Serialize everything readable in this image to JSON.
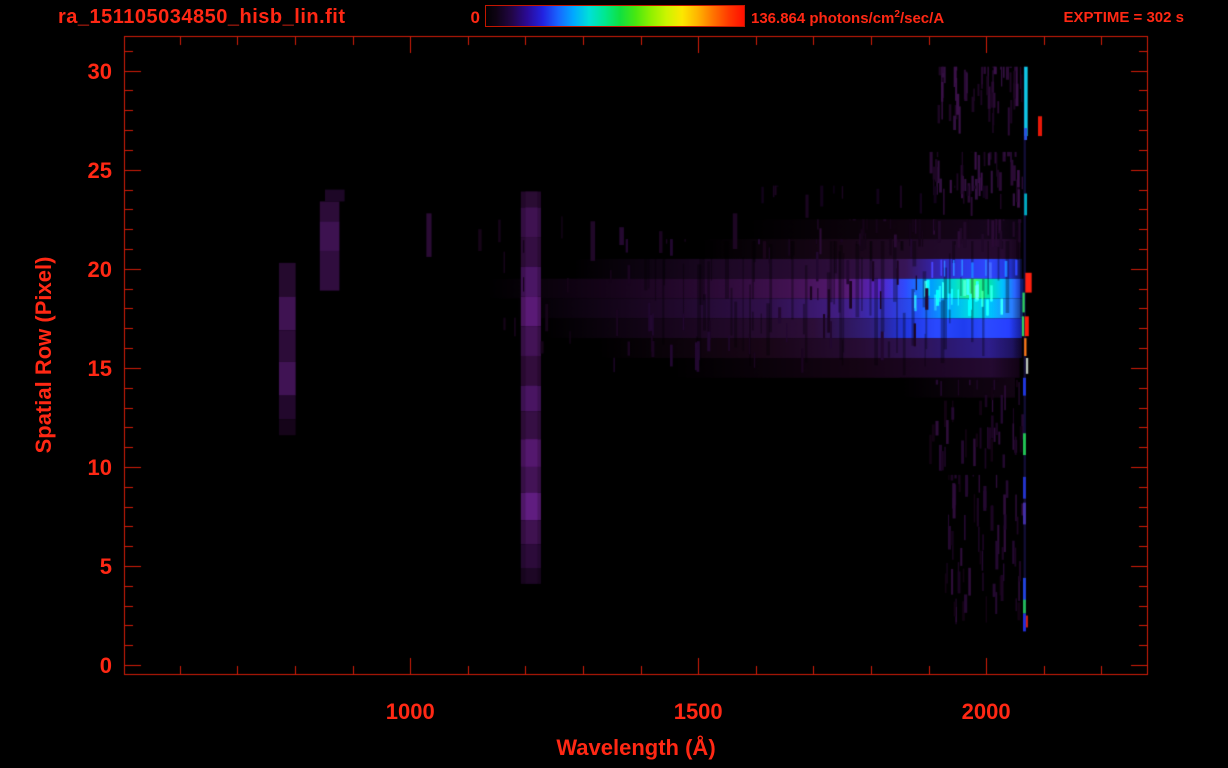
{
  "header": {
    "title": "ra_151105034850_hisb_lin.fit",
    "exptime": "EXPTIME = 302 s",
    "colorbar": {
      "min_label": "0",
      "max_label_prefix": "136.864 photons/cm",
      "max_label_sup": "2",
      "max_label_suffix": "/sec/A",
      "gradient": [
        [
          0.0,
          "#020202"
        ],
        [
          0.04,
          "#0e0314"
        ],
        [
          0.1,
          "#220646"
        ],
        [
          0.16,
          "#2a0a96"
        ],
        [
          0.22,
          "#2222e0"
        ],
        [
          0.28,
          "#1866ff"
        ],
        [
          0.34,
          "#00aaff"
        ],
        [
          0.4,
          "#00e0d8"
        ],
        [
          0.46,
          "#00e890"
        ],
        [
          0.52,
          "#10e040"
        ],
        [
          0.58,
          "#48e810"
        ],
        [
          0.64,
          "#90f000"
        ],
        [
          0.7,
          "#ccf400"
        ],
        [
          0.76,
          "#fce800"
        ],
        [
          0.82,
          "#ffb400"
        ],
        [
          0.88,
          "#ff7400"
        ],
        [
          0.94,
          "#ff3a00"
        ],
        [
          1.0,
          "#ff0e00"
        ]
      ]
    }
  },
  "axes": {
    "x": {
      "title": "Wavelength (Å)",
      "range": [
        503,
        2281
      ],
      "major_ticks": [
        1000,
        1500,
        2000
      ],
      "labels": [
        "1000",
        "1500",
        "2000"
      ],
      "minor_step": 100,
      "minor_from": 600,
      "minor_to": 2200
    },
    "y": {
      "title": "Spatial Row (Pixel)",
      "range": [
        -0.5,
        31.75
      ],
      "major_ticks": [
        0,
        5,
        10,
        15,
        20,
        25,
        30
      ],
      "labels": [
        "0",
        "5",
        "10",
        "15",
        "20",
        "25",
        "30"
      ],
      "minor_step": 1,
      "minor_from": 0,
      "minor_to": 31
    }
  },
  "colors": {
    "axis": "#d41c08",
    "text": "#ff2814",
    "background": "#000000"
  },
  "chart_data": {
    "type": "heatmap",
    "title": "ra_151105034850_hisb_lin.fit",
    "xlabel": "Wavelength (Å)",
    "ylabel": "Spatial Row (Pixel)",
    "x_range_angstrom": [
      503,
      2281
    ],
    "y_range_rows": [
      -0.5,
      31.75
    ],
    "intensity_scale": {
      "min": 0,
      "max": 136.864,
      "units": "photons/cm2/sec/A"
    },
    "exposure_s": 302,
    "background": "#000000",
    "features": {
      "seed": 42,
      "h_bands": [
        {
          "row": 22,
          "stops": [
            [
              1580,
              "#000000"
            ],
            [
              1850,
              "#10030f"
            ],
            [
              2000,
              "#16051c"
            ],
            [
              2058,
              "#0c0310"
            ]
          ]
        },
        {
          "row": 21,
          "stops": [
            [
              1500,
              "#000000"
            ],
            [
              1750,
              "#180617"
            ],
            [
              1920,
              "#220a2a"
            ],
            [
              2030,
              "#260b30"
            ],
            [
              2060,
              "#150418"
            ]
          ]
        },
        {
          "row": 20,
          "stops": [
            [
              1280,
              "#000000"
            ],
            [
              1560,
              "#1e0826"
            ],
            [
              1760,
              "#2e0e3c"
            ],
            [
              1860,
              "#381658"
            ],
            [
              1915,
              "#3325b0"
            ],
            [
              1960,
              "#2c3ae8"
            ],
            [
              2005,
              "#2e47ff"
            ],
            [
              2040,
              "#2434d8"
            ],
            [
              2062,
              "#10124a"
            ]
          ]
        },
        {
          "row": 19,
          "stops": [
            [
              1130,
              "#000000"
            ],
            [
              1350,
              "#16041a"
            ],
            [
              1520,
              "#2a0a34"
            ],
            [
              1660,
              "#421252"
            ],
            [
              1760,
              "#561a74"
            ],
            [
              1815,
              "#5524c8"
            ],
            [
              1860,
              "#2f4cff"
            ],
            [
              1905,
              "#00a0ff"
            ],
            [
              1945,
              "#00ddd0"
            ],
            [
              1980,
              "#35ff78"
            ],
            [
              2003,
              "#00e8a8"
            ],
            [
              2028,
              "#00c2ff"
            ],
            [
              2050,
              "#2a64ff"
            ],
            [
              2065,
              "#101e90"
            ]
          ]
        },
        {
          "row": 18,
          "stops": [
            [
              1180,
              "#000000"
            ],
            [
              1420,
              "#1c0724"
            ],
            [
              1620,
              "#30104a"
            ],
            [
              1760,
              "#431f8a"
            ],
            [
              1830,
              "#3434d0"
            ],
            [
              1885,
              "#2256ff"
            ],
            [
              1935,
              "#00aaff"
            ],
            [
              1975,
              "#00dce0"
            ],
            [
              2010,
              "#00bfff"
            ],
            [
              2045,
              "#2a7dff"
            ],
            [
              2064,
              "#123078"
            ]
          ]
        },
        {
          "row": 17,
          "stops": [
            [
              1230,
              "#000000"
            ],
            [
              1500,
              "#1c0722"
            ],
            [
              1700,
              "#2c0e38"
            ],
            [
              1800,
              "#311e7a"
            ],
            [
              1860,
              "#2136e0"
            ],
            [
              1915,
              "#2a49ff"
            ],
            [
              1960,
              "#1f3df0"
            ],
            [
              2000,
              "#2c4bff"
            ],
            [
              2040,
              "#2740ff"
            ],
            [
              2062,
              "#141f96"
            ]
          ]
        },
        {
          "row": 16,
          "stops": [
            [
              1320,
              "#000000"
            ],
            [
              1620,
              "#190617"
            ],
            [
              1780,
              "#270c34"
            ],
            [
              1880,
              "#2f1457"
            ],
            [
              1950,
              "#2c1a78"
            ],
            [
              2005,
              "#2e1e8c"
            ],
            [
              2045,
              "#1f1462"
            ],
            [
              2062,
              "#0e0526"
            ]
          ]
        },
        {
          "row": 15,
          "stops": [
            [
              1450,
              "#000000"
            ],
            [
              1780,
              "#150414"
            ],
            [
              1930,
              "#1f0728"
            ],
            [
              2010,
              "#240a31"
            ],
            [
              2058,
              "#120314"
            ]
          ]
        },
        {
          "row": 14,
          "stops": [
            [
              1850,
              "#000000"
            ],
            [
              1980,
              "#0e030f"
            ],
            [
              2050,
              "#120413"
            ]
          ]
        }
      ],
      "lyman_alpha_column": {
        "x": [
          1192,
          1227
        ],
        "core_x": [
          1200,
          1221
        ],
        "segments": [
          [
            23.1,
            23.9,
            "#220829",
            "#2a0c33"
          ],
          [
            21.6,
            23.1,
            "#330e41",
            "#3f1251"
          ],
          [
            20.1,
            21.6,
            "#2a0b34",
            "#340e42"
          ],
          [
            18.6,
            20.1,
            "#3c1150",
            "#4a1664"
          ],
          [
            17.1,
            18.6,
            "#4a155e",
            "#5a1a76"
          ],
          [
            15.6,
            17.1,
            "#360f44",
            "#431356"
          ],
          [
            14.1,
            15.6,
            "#28092f",
            "#320d3c"
          ],
          [
            12.8,
            14.1,
            "#3c1150",
            "#491562"
          ],
          [
            11.4,
            12.8,
            "#2c0c36",
            "#360f44"
          ],
          [
            10.0,
            11.4,
            "#451358",
            "#54186e"
          ],
          [
            8.7,
            10.0,
            "#360f44",
            "#431356"
          ],
          [
            7.3,
            8.7,
            "#4e1766",
            "#601d80"
          ],
          [
            6.1,
            7.3,
            "#330e40",
            "#3f1250"
          ],
          [
            4.9,
            6.1,
            "#240930",
            "#2c0b3a"
          ],
          [
            4.1,
            4.9,
            "#17051d",
            "#1d0725"
          ]
        ]
      },
      "left_blob_columns": [
        {
          "x": [
            772,
            801
          ],
          "segments": [
            [
              18.6,
              20.3,
              "#250a2e"
            ],
            [
              16.9,
              18.6,
              "#3f1352"
            ],
            [
              15.3,
              16.9,
              "#2c0c38"
            ],
            [
              13.6,
              15.3,
              "#401354"
            ],
            [
              12.4,
              13.6,
              "#22082c"
            ],
            [
              11.6,
              12.4,
              "#150419"
            ]
          ]
        },
        {
          "x": [
            843,
            877
          ],
          "segments": [
            [
              22.4,
              23.4,
              "#2c0c38"
            ],
            [
              20.9,
              22.4,
              "#3d1250"
            ],
            [
              18.9,
              20.9,
              "#300d3e"
            ]
          ]
        },
        {
          "x": [
            852,
            886
          ],
          "segments": [
            [
              23.4,
              24.0,
              "#1d0726"
            ]
          ]
        }
      ],
      "faint_lines": [
        [
          1028,
          1037,
          20.6,
          22.8,
          "#2a0b34"
        ],
        [
          1118,
          1124,
          20.9,
          22.0,
          "#160418"
        ],
        [
          1313,
          1321,
          20.4,
          22.4,
          "#200828"
        ],
        [
          1363,
          1371,
          21.2,
          22.1,
          "#240930"
        ],
        [
          1432,
          1438,
          20.8,
          21.9,
          "#1a0520"
        ],
        [
          1560,
          1568,
          21.0,
          22.8,
          "#1d0623"
        ],
        [
          1612,
          1618,
          20.5,
          21.4,
          "#190519"
        ]
      ],
      "noise_regions": [
        {
          "x": [
            1915,
            2062
          ],
          "rows": [
            26.7,
            30.2
          ],
          "count": 55,
          "colors": [
            "#2a0b34",
            "#3a1148",
            "#1c0622",
            "#31103f"
          ]
        },
        {
          "x": [
            1900,
            2062
          ],
          "rows": [
            22.6,
            25.9
          ],
          "count": 48,
          "colors": [
            "#2a0b34",
            "#3a1148",
            "#1c0622",
            "#31103f"
          ]
        },
        {
          "x": [
            1700,
            2060
          ],
          "rows": [
            20.6,
            22.5
          ],
          "count": 40,
          "colors": [
            "#200828",
            "#2a0b34",
            "#150418"
          ]
        },
        {
          "x": [
            1925,
            2062
          ],
          "rows": [
            1.9,
            9.6
          ],
          "count": 65,
          "colors": [
            "#240930",
            "#1b0522",
            "#2e0d3a",
            "#120312"
          ]
        },
        {
          "x": [
            1900,
            2062
          ],
          "rows": [
            9.6,
            14.4
          ],
          "count": 45,
          "colors": [
            "#240930",
            "#1b0522",
            "#2e0d3a",
            "#120312"
          ]
        },
        {
          "x": [
            1350,
            1900
          ],
          "rows": [
            14.6,
            21.5
          ],
          "count": 50,
          "colors": [
            "#1a0520",
            "#220830"
          ]
        },
        {
          "x": [
            1600,
            2050
          ],
          "rows": [
            22.5,
            24.2
          ],
          "count": 18,
          "colors": [
            "#12031a",
            "#1a0520"
          ]
        },
        {
          "x": [
            1150,
            1350
          ],
          "rows": [
            15.0,
            23.0
          ],
          "count": 12,
          "colors": [
            "#150418"
          ]
        }
      ],
      "dark_stripes": {
        "x": [
          1400,
          2063
        ],
        "rows": [
          14.6,
          21.4
        ],
        "count": 70,
        "alpha": 0.32
      },
      "bright_stripes": [
        {
          "x": [
            1855,
            2058
          ],
          "rows": [
            17.6,
            19.5
          ],
          "count": 22,
          "colors": [
            "#40ffa0",
            "#00e8ff",
            "#60ff60",
            "#2a70ff"
          ]
        },
        {
          "x": [
            1900,
            2052
          ],
          "rows": [
            19.5,
            20.5
          ],
          "count": 10,
          "colors": [
            "#2e47ff",
            "#00a8ff"
          ]
        }
      ],
      "edge_column": {
        "base": [
          2065,
          2069,
          1.8,
          30.2,
          "#241a6e",
          0.5
        ],
        "segments": [
          [
            2066,
            2072,
            26.7,
            30.2,
            "#10c8e8"
          ],
          [
            2066,
            2071,
            26.5,
            27.1,
            "#2a50e0"
          ],
          [
            2090,
            2097,
            26.7,
            27.7,
            "#e81808"
          ],
          [
            2066,
            2071,
            22.7,
            23.8,
            "#00aac0"
          ],
          [
            2068,
            2079,
            18.8,
            19.8,
            "#ff2010"
          ],
          [
            2063,
            2067,
            17.8,
            18.8,
            "#2fd060"
          ],
          [
            2062,
            2066,
            16.6,
            17.6,
            "#2fd060"
          ],
          [
            2067,
            2074,
            16.6,
            17.6,
            "#ff1c08"
          ],
          [
            2066,
            2070,
            15.6,
            16.5,
            "#ff7817"
          ],
          [
            2069,
            2073,
            14.7,
            15.5,
            "#b8c4b8"
          ],
          [
            2064,
            2069,
            13.6,
            14.5,
            "#2038e0"
          ],
          [
            2064,
            2069,
            10.6,
            11.7,
            "#22c455"
          ],
          [
            2064,
            2069,
            8.4,
            9.5,
            "#2434cc"
          ],
          [
            2064,
            2069,
            7.1,
            8.2,
            "#4330a8"
          ],
          [
            2064,
            2069,
            3.2,
            4.4,
            "#2244dd"
          ],
          [
            2064,
            2069,
            2.6,
            3.3,
            "#22b85c"
          ],
          [
            2064,
            2069,
            1.7,
            2.6,
            "#2430e0"
          ],
          [
            2069,
            2072,
            1.9,
            2.5,
            "#d42010"
          ]
        ]
      }
    }
  }
}
